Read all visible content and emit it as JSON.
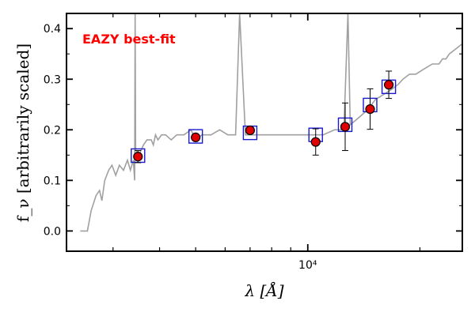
{
  "chart_data": {
    "type": "scatter",
    "xscale": "log",
    "xlim": [
      2250,
      26000
    ],
    "ylim": [
      -0.04,
      0.43
    ],
    "x_ticks": [
      {
        "value": 10000,
        "label": "10⁴"
      }
    ],
    "y_ticks": [
      {
        "value": 0.0,
        "label": "0.0"
      },
      {
        "value": 0.1,
        "label": "0.1"
      },
      {
        "value": 0.2,
        "label": "0.2"
      },
      {
        "value": 0.3,
        "label": "0.3"
      },
      {
        "value": 0.4,
        "label": "0.4"
      }
    ],
    "xlabel": "λ [Å]",
    "ylabel": "f_ν [arbitrarily scaled]",
    "annotation": "EAZY best-fit",
    "colors": {
      "template": "#a0a0a0",
      "observed": "#e00000",
      "model": "#1a1acc",
      "annotation": "#ff0000"
    },
    "template_spectrum": {
      "x": [
        2450,
        2560,
        2620,
        2700,
        2760,
        2800,
        2850,
        2920,
        2980,
        3050,
        3120,
        3200,
        3280,
        3340,
        3400,
        3430,
        3440,
        3450,
        3520,
        3620,
        3700,
        3800,
        3850,
        3900,
        3960,
        4050,
        4150,
        4300,
        4450,
        4650,
        4860,
        5000,
        5200,
        5500,
        5800,
        6100,
        6400,
        6563,
        6800,
        7200,
        7600,
        8000,
        8500,
        9000,
        9500,
        10000,
        10500,
        11000,
        11800,
        12500,
        12820,
        13000,
        13500,
        14000,
        14500,
        15200,
        16000,
        16800,
        17500,
        18000,
        18750,
        19500,
        20500,
        21600,
        22500,
        23000,
        23500,
        24000,
        25000,
        26000
      ],
      "y": [
        0.0,
        0.0,
        0.04,
        0.07,
        0.08,
        0.06,
        0.1,
        0.12,
        0.13,
        0.11,
        0.13,
        0.12,
        0.14,
        0.12,
        0.14,
        0.1,
        0.43,
        0.16,
        0.15,
        0.17,
        0.18,
        0.18,
        0.17,
        0.19,
        0.18,
        0.19,
        0.19,
        0.18,
        0.19,
        0.19,
        0.2,
        0.18,
        0.19,
        0.19,
        0.2,
        0.19,
        0.19,
        0.43,
        0.19,
        0.19,
        0.19,
        0.19,
        0.19,
        0.19,
        0.19,
        0.19,
        0.19,
        0.19,
        0.2,
        0.2,
        0.43,
        0.21,
        0.22,
        0.23,
        0.24,
        0.26,
        0.27,
        0.28,
        0.29,
        0.3,
        0.31,
        0.31,
        0.32,
        0.33,
        0.33,
        0.34,
        0.34,
        0.35,
        0.36,
        0.37
      ]
    },
    "observed": [
      {
        "x": 3500,
        "y": 0.147,
        "err": 0.012
      },
      {
        "x": 5000,
        "y": 0.185,
        "err": 0.0
      },
      {
        "x": 7000,
        "y": 0.199,
        "err": 0.0
      },
      {
        "x": 10500,
        "y": 0.176,
        "err": 0.026
      },
      {
        "x": 12600,
        "y": 0.206,
        "err": 0.047
      },
      {
        "x": 14700,
        "y": 0.241,
        "err": 0.04
      },
      {
        "x": 16500,
        "y": 0.289,
        "err": 0.027
      }
    ],
    "model_fluxes": [
      {
        "x": 3500,
        "y": 0.149
      },
      {
        "x": 5000,
        "y": 0.187
      },
      {
        "x": 7000,
        "y": 0.194
      },
      {
        "x": 10500,
        "y": 0.19
      },
      {
        "x": 12600,
        "y": 0.21
      },
      {
        "x": 14700,
        "y": 0.249
      },
      {
        "x": 16500,
        "y": 0.285
      }
    ]
  }
}
